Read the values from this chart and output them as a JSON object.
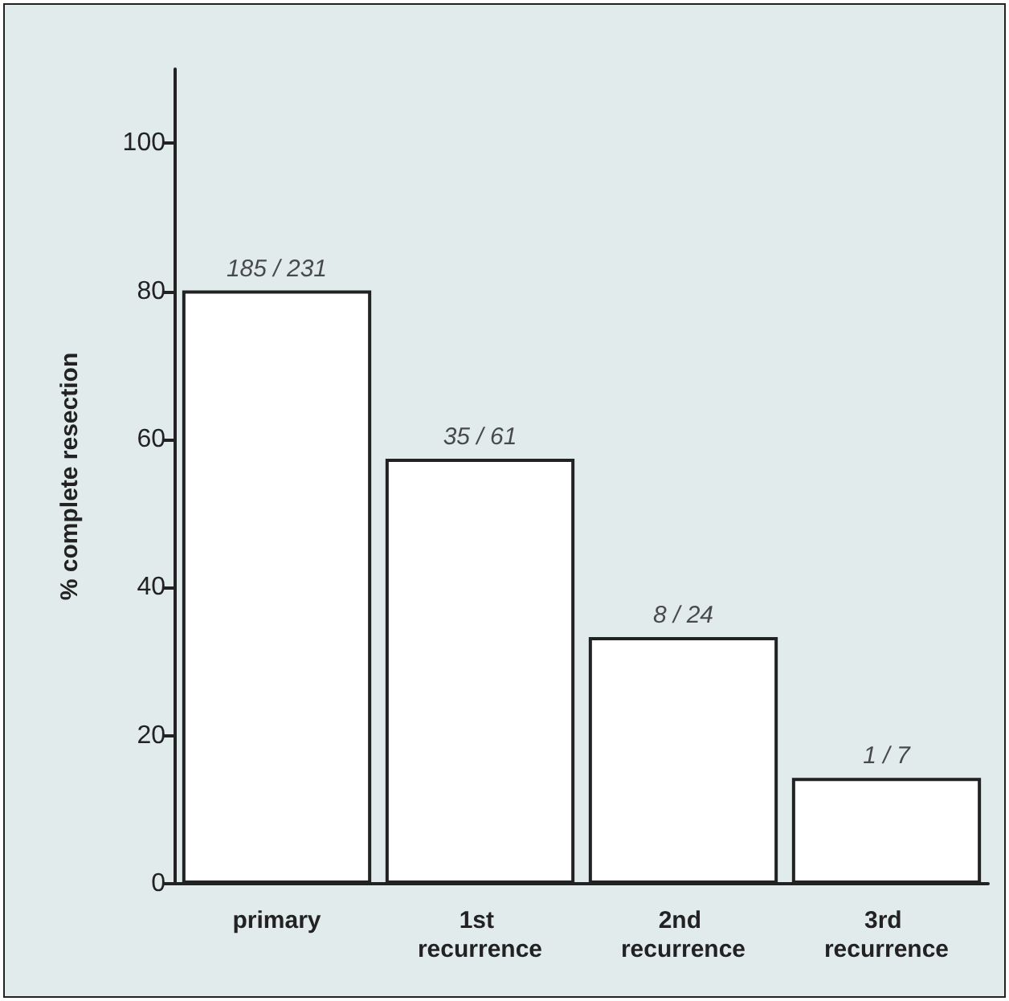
{
  "chart_data": {
    "type": "bar",
    "ylabel": "% complete resection",
    "categories": [
      "primary",
      "1st recurrence",
      "2nd recurrence",
      "3rd recurrence"
    ],
    "values": [
      80.1,
      57.4,
      33.3,
      14.3
    ],
    "annotations": [
      {
        "text": "185 / 231",
        "x": "primary",
        "y": 80.1
      },
      {
        "text": "35 / 61",
        "x": "1st recurrence",
        "y": 57.4
      },
      {
        "text": "8 / 24",
        "x": "2nd recurrence",
        "y": 33.3
      },
      {
        "text": "1 / 7",
        "x": "3rd recurrence",
        "y": 14.3
      }
    ],
    "color": "#ffffff",
    "ylim": [
      0,
      110
    ],
    "yticks": [
      0,
      20,
      40,
      60,
      80,
      100
    ],
    "grid": false
  }
}
